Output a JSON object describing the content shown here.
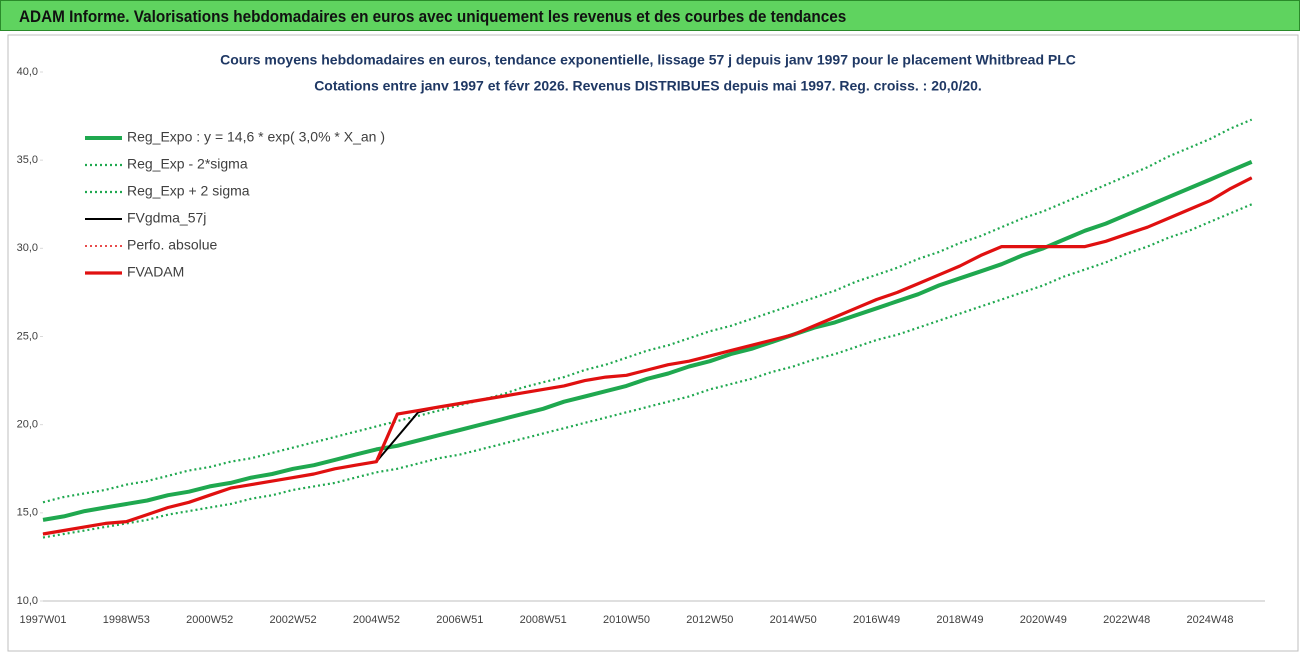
{
  "header": {
    "title": "ADAM Informe. Valorisations hebdomadaires en euros avec uniquement les revenus et des courbes de tendances"
  },
  "chart_data": {
    "type": "line",
    "title": "Cours moyens hebdomadaires en euros, tendance exponentielle, lissage 57 j depuis janv 1997 pour le placement Whitbread PLC",
    "subtitle": "Cotations entre janv 1997 et févr 2026. Revenus DISTRIBUES depuis mai 1997. Reg. croiss. : 20,0/20.",
    "categories": [
      "1997W01",
      null,
      null,
      null,
      "1998W53",
      null,
      null,
      null,
      "2000W52",
      null,
      null,
      null,
      "2002W52",
      null,
      null,
      null,
      "2004W52",
      null,
      null,
      null,
      "2006W51",
      null,
      null,
      null,
      "2008W51",
      null,
      null,
      null,
      "2010W50",
      null,
      null,
      null,
      "2012W50",
      null,
      null,
      null,
      "2014W50",
      null,
      null,
      null,
      "2016W49",
      null,
      null,
      null,
      "2018W49",
      null,
      null,
      null,
      "2020W49",
      null,
      null,
      null,
      "2022W48",
      null,
      null,
      null,
      "2024W48",
      null,
      null
    ],
    "ylim": [
      10,
      40
    ],
    "yticks": [
      {
        "value": 10,
        "label": "10,0"
      },
      {
        "value": 15,
        "label": "15,0"
      },
      {
        "value": 20,
        "label": "20,0"
      },
      {
        "value": 25,
        "label": "25,0"
      },
      {
        "value": 30,
        "label": "30,0"
      },
      {
        "value": 35,
        "label": "35,0"
      },
      {
        "value": 40,
        "label": "40,0"
      }
    ],
    "grid": false,
    "legend": "top-left",
    "series": [
      {
        "name": "Reg_Expo : y = 14,6 * exp( 3,0% *  X_an )",
        "color": "#1fa84f",
        "style": "solid",
        "values": [
          14.6,
          14.8,
          15.1,
          15.3,
          15.5,
          15.7,
          16.0,
          16.2,
          16.5,
          16.7,
          17.0,
          17.2,
          17.5,
          17.7,
          18.0,
          18.3,
          18.6,
          18.8,
          19.1,
          19.4,
          19.7,
          20.0,
          20.3,
          20.6,
          20.9,
          21.3,
          21.6,
          21.9,
          22.2,
          22.6,
          22.9,
          23.3,
          23.6,
          24.0,
          24.3,
          24.7,
          25.1,
          25.5,
          25.8,
          26.2,
          26.6,
          27.0,
          27.4,
          27.9,
          28.3,
          28.7,
          29.1,
          29.6,
          30.0,
          30.5,
          31.0,
          31.4,
          31.9,
          32.4,
          32.9,
          33.4,
          33.9,
          34.4,
          34.9
        ]
      },
      {
        "name": "Reg_Exp - 2*sigma",
        "color": "#1fa84f",
        "style": "dotted",
        "values": [
          13.6,
          13.8,
          14.0,
          14.2,
          14.4,
          14.6,
          14.9,
          15.1,
          15.3,
          15.5,
          15.8,
          16.0,
          16.3,
          16.5,
          16.7,
          17.0,
          17.3,
          17.5,
          17.8,
          18.1,
          18.3,
          18.6,
          18.9,
          19.2,
          19.5,
          19.8,
          20.1,
          20.4,
          20.7,
          21.0,
          21.3,
          21.6,
          22.0,
          22.3,
          22.6,
          23.0,
          23.3,
          23.7,
          24.0,
          24.4,
          24.8,
          25.1,
          25.5,
          25.9,
          26.3,
          26.7,
          27.1,
          27.5,
          27.9,
          28.4,
          28.8,
          29.2,
          29.7,
          30.1,
          30.6,
          31.0,
          31.5,
          32.0,
          32.5
        ]
      },
      {
        "name": "Reg_Exp + 2 sigma",
        "color": "#1fa84f",
        "style": "dotted",
        "values": [
          15.6,
          15.9,
          16.1,
          16.3,
          16.6,
          16.8,
          17.1,
          17.4,
          17.6,
          17.9,
          18.1,
          18.4,
          18.7,
          19.0,
          19.3,
          19.6,
          19.9,
          20.2,
          20.5,
          20.8,
          21.1,
          21.4,
          21.7,
          22.1,
          22.4,
          22.7,
          23.1,
          23.4,
          23.8,
          24.2,
          24.5,
          24.9,
          25.3,
          25.6,
          26.0,
          26.4,
          26.8,
          27.2,
          27.6,
          28.1,
          28.5,
          28.9,
          29.4,
          29.8,
          30.3,
          30.7,
          31.2,
          31.7,
          32.1,
          32.6,
          33.1,
          33.6,
          34.1,
          34.6,
          35.2,
          35.7,
          36.2,
          36.8,
          37.3
        ]
      },
      {
        "name": "FVgdma_57j",
        "color": "#000000",
        "style": "solid",
        "values": [
          13.8,
          14.0,
          14.2,
          14.4,
          14.5,
          14.9,
          15.3,
          15.6,
          16.0,
          16.4,
          16.6,
          16.8,
          17.0,
          17.2,
          17.5,
          17.7,
          17.9,
          19.3,
          20.7,
          21.0,
          21.2,
          21.4,
          21.6,
          21.8,
          22.0,
          22.2,
          22.5,
          22.7,
          22.8,
          23.1,
          23.4,
          23.6,
          23.9,
          24.2,
          24.5,
          24.8,
          25.1,
          25.6,
          26.1,
          26.6,
          27.1,
          27.5,
          28.0,
          28.5,
          29.0,
          29.6,
          30.1,
          30.1,
          30.1,
          30.1,
          30.1,
          30.4,
          30.8,
          31.2,
          31.7,
          32.2,
          32.7,
          33.4,
          34.0
        ]
      },
      {
        "name": "Perfo. absolue",
        "color": "#e01010",
        "style": "dotted",
        "values": [
          13.8,
          14.0,
          14.2,
          14.4,
          14.5,
          14.9,
          15.3,
          15.6,
          16.0,
          16.4,
          16.6,
          16.8,
          17.0,
          17.2,
          17.5,
          17.7,
          17.9,
          20.6,
          20.8,
          21.0,
          21.2,
          21.4,
          21.6,
          21.8,
          22.0,
          22.2,
          22.5,
          22.7,
          22.8,
          23.1,
          23.4,
          23.6,
          23.9,
          24.2,
          24.5,
          24.8,
          25.1,
          25.6,
          26.1,
          26.6,
          27.1,
          27.5,
          28.0,
          28.5,
          29.0,
          29.6,
          30.1,
          30.1,
          30.1,
          30.1,
          30.1,
          30.4,
          30.8,
          31.2,
          31.7,
          32.2,
          32.7,
          33.4,
          34.0
        ]
      },
      {
        "name": "FVADAM",
        "color": "#e01010",
        "style": "solid",
        "values": [
          13.8,
          14.0,
          14.2,
          14.4,
          14.5,
          14.9,
          15.3,
          15.6,
          16.0,
          16.4,
          16.6,
          16.8,
          17.0,
          17.2,
          17.5,
          17.7,
          17.9,
          20.6,
          20.8,
          21.0,
          21.2,
          21.4,
          21.6,
          21.8,
          22.0,
          22.2,
          22.5,
          22.7,
          22.8,
          23.1,
          23.4,
          23.6,
          23.9,
          24.2,
          24.5,
          24.8,
          25.1,
          25.6,
          26.1,
          26.6,
          27.1,
          27.5,
          28.0,
          28.5,
          29.0,
          29.6,
          30.1,
          30.1,
          30.1,
          30.1,
          30.1,
          30.4,
          30.8,
          31.2,
          31.7,
          32.2,
          32.7,
          33.4,
          34.0
        ]
      }
    ]
  }
}
